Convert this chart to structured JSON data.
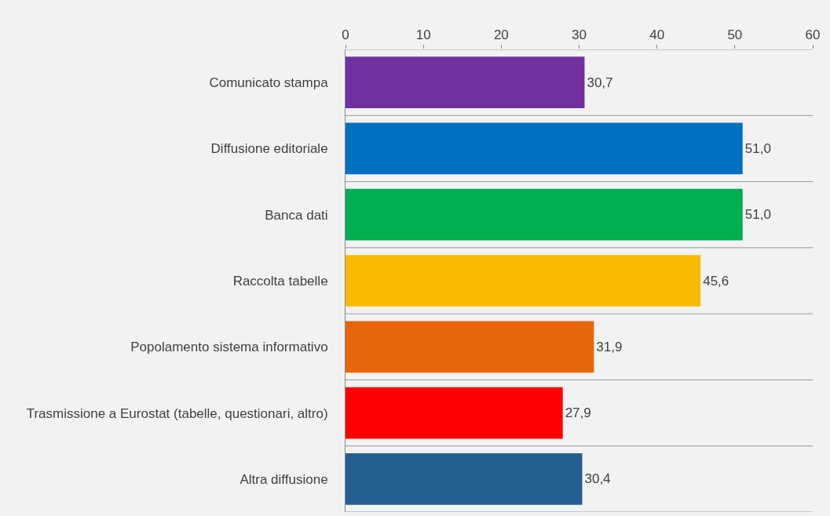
{
  "chart_data": {
    "type": "bar",
    "orientation": "horizontal",
    "categories": [
      "Comunicato stampa",
      "Diffusione editoriale",
      "Banca dati",
      "Raccolta tabelle",
      "Popolamento sistema informativo",
      "Trasmissione a Eurostat (tabelle, questionari, altro)",
      "Altra diffusione"
    ],
    "values": [
      30.7,
      51.0,
      51.0,
      45.6,
      31.9,
      27.9,
      30.4
    ],
    "value_labels": [
      "30,7",
      "51,0",
      "51,0",
      "45,6",
      "31,9",
      "27,9",
      "30,4"
    ],
    "colors": [
      "#7030a0",
      "#0070c0",
      "#00b050",
      "#f9bb00",
      "#e8650a",
      "#ff0000",
      "#255e91"
    ],
    "xlim": [
      0,
      60
    ],
    "xticks": [
      0,
      10,
      20,
      30,
      40,
      50,
      60
    ],
    "grid": "y"
  }
}
